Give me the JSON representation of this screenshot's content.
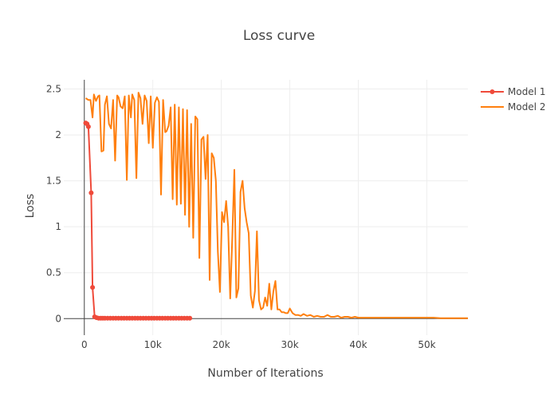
{
  "chart_data": {
    "type": "line",
    "title": "Loss curve",
    "xlabel": "Number of Iterations",
    "ylabel": "Loss",
    "xlim": [
      -3000,
      56000
    ],
    "ylim": [
      -0.18,
      2.6
    ],
    "x_ticks": [
      {
        "value": 0,
        "label": "0"
      },
      {
        "value": 10000,
        "label": "10k"
      },
      {
        "value": 20000,
        "label": "20k"
      },
      {
        "value": 30000,
        "label": "30k"
      },
      {
        "value": 40000,
        "label": "40k"
      },
      {
        "value": 50000,
        "label": "50k"
      }
    ],
    "y_ticks": [
      {
        "value": 0,
        "label": "0"
      },
      {
        "value": 0.5,
        "label": "0.5"
      },
      {
        "value": 1,
        "label": "1"
      },
      {
        "value": 1.5,
        "label": "1.5"
      },
      {
        "value": 2,
        "label": "2"
      },
      {
        "value": 2.5,
        "label": "2.5"
      }
    ],
    "grid": true,
    "legend_position": "top-right",
    "series": [
      {
        "name": "Model 1",
        "color": "#ef4a3a",
        "mode": "lines+markers",
        "x": [
          200,
          400,
          600,
          1000,
          1200,
          1500,
          1800,
          2100,
          2400,
          2700,
          3000,
          3400,
          3800,
          4200,
          4600,
          5000,
          5400,
          5800,
          6200,
          6600,
          7000,
          7400,
          7800,
          8200,
          8600,
          9000,
          9400,
          9800,
          10200,
          10600,
          11000,
          11400,
          11800,
          12200,
          12600,
          13000,
          13400,
          13800,
          14200,
          14600,
          15000,
          15400
        ],
        "y": [
          2.13,
          2.12,
          2.09,
          1.37,
          0.34,
          0.02,
          0.01,
          0.005,
          0.005,
          0.005,
          0.005,
          0.005,
          0.005,
          0.005,
          0.005,
          0.005,
          0.005,
          0.005,
          0.005,
          0.005,
          0.005,
          0.005,
          0.005,
          0.005,
          0.005,
          0.005,
          0.005,
          0.005,
          0.005,
          0.005,
          0.005,
          0.005,
          0.005,
          0.005,
          0.005,
          0.005,
          0.005,
          0.005,
          0.005,
          0.005,
          0.005,
          0.005
        ]
      },
      {
        "name": "Model 2",
        "color": "#ff7f0e",
        "mode": "lines",
        "x": [
          200,
          600,
          900,
          1200,
          1400,
          1700,
          2000,
          2200,
          2500,
          2800,
          3000,
          3300,
          3600,
          3900,
          4200,
          4500,
          4800,
          5000,
          5300,
          5600,
          5900,
          6200,
          6500,
          6800,
          7000,
          7300,
          7600,
          7900,
          8200,
          8500,
          8800,
          9100,
          9400,
          9700,
          10000,
          10300,
          10600,
          10900,
          11200,
          11500,
          11800,
          12000,
          12300,
          12600,
          12900,
          13200,
          13500,
          13800,
          14100,
          14400,
          14700,
          15000,
          15300,
          15600,
          15900,
          16200,
          16500,
          16800,
          17100,
          17400,
          17700,
          18000,
          18300,
          18600,
          18900,
          19200,
          19500,
          19800,
          20100,
          20400,
          20700,
          21000,
          21300,
          21600,
          21900,
          22200,
          22500,
          22800,
          23100,
          23400,
          23700,
          24000,
          24300,
          24600,
          24900,
          25200,
          25500,
          25800,
          26100,
          26400,
          26700,
          27000,
          27300,
          27600,
          27900,
          28200,
          28500,
          28800,
          29100,
          29400,
          29700,
          30000,
          30400,
          30800,
          31200,
          31600,
          32000,
          32500,
          33000,
          33500,
          34000,
          34500,
          35000,
          35500,
          36000,
          36500,
          37000,
          37500,
          38000,
          38500,
          39000,
          39500,
          40000,
          41000,
          42000,
          43000,
          44000,
          45000,
          46000,
          47000,
          48000,
          49000,
          50000,
          51000,
          52000,
          53000,
          54000,
          55000,
          56000
        ],
        "y": [
          2.4,
          2.38,
          2.38,
          2.19,
          2.44,
          2.37,
          2.42,
          2.43,
          1.82,
          1.83,
          2.33,
          2.42,
          2.12,
          2.07,
          2.38,
          1.72,
          2.43,
          2.41,
          2.31,
          2.29,
          2.42,
          1.51,
          2.43,
          2.19,
          2.44,
          2.38,
          1.53,
          2.46,
          2.4,
          2.12,
          2.43,
          2.37,
          1.91,
          2.42,
          1.86,
          2.35,
          2.41,
          2.36,
          1.35,
          2.38,
          2.03,
          2.04,
          2.1,
          2.3,
          1.3,
          2.33,
          1.24,
          2.3,
          1.25,
          2.28,
          1.13,
          2.27,
          1.0,
          2.12,
          0.88,
          2.2,
          2.17,
          0.66,
          1.95,
          1.98,
          1.52,
          2.0,
          0.42,
          1.8,
          1.75,
          1.5,
          0.73,
          0.29,
          1.16,
          1.05,
          1.28,
          1.0,
          0.22,
          0.88,
          1.62,
          0.23,
          0.33,
          1.38,
          1.5,
          1.2,
          1.05,
          0.93,
          0.25,
          0.12,
          0.3,
          0.95,
          0.2,
          0.1,
          0.12,
          0.23,
          0.14,
          0.38,
          0.1,
          0.3,
          0.41,
          0.1,
          0.1,
          0.07,
          0.07,
          0.06,
          0.06,
          0.11,
          0.06,
          0.04,
          0.04,
          0.03,
          0.05,
          0.03,
          0.04,
          0.02,
          0.03,
          0.02,
          0.02,
          0.04,
          0.02,
          0.02,
          0.03,
          0.01,
          0.02,
          0.02,
          0.01,
          0.02,
          0.01,
          0.01,
          0.01,
          0.01,
          0.01,
          0.01,
          0.01,
          0.01,
          0.01,
          0.01,
          0.01,
          0.01,
          0.005,
          0.005,
          0.005,
          0.005,
          0.005
        ]
      }
    ]
  }
}
